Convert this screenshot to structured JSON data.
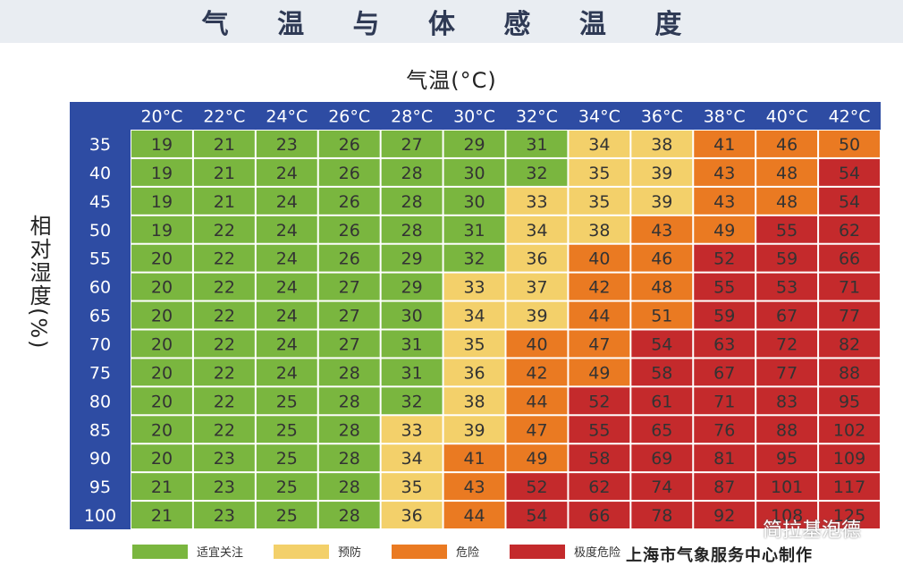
{
  "title": "气 温 与 体 感 温 度",
  "chart_data": {
    "type": "heatmap",
    "xlabel": "气温(°C)",
    "ylabel": "相对湿度(%)",
    "x": [
      "20°C",
      "22°C",
      "24°C",
      "26°C",
      "28°C",
      "30°C",
      "32°C",
      "34°C",
      "36°C",
      "38°C",
      "40°C",
      "42°C"
    ],
    "y": [
      "35",
      "40",
      "45",
      "50",
      "55",
      "60",
      "65",
      "70",
      "75",
      "80",
      "85",
      "90",
      "95",
      "100"
    ],
    "values": [
      [
        19,
        21,
        23,
        26,
        27,
        29,
        31,
        34,
        38,
        41,
        46,
        50
      ],
      [
        19,
        21,
        24,
        26,
        28,
        30,
        32,
        35,
        39,
        43,
        48,
        54
      ],
      [
        19,
        21,
        24,
        26,
        28,
        30,
        33,
        35,
        39,
        43,
        48,
        54
      ],
      [
        19,
        22,
        24,
        26,
        28,
        31,
        34,
        38,
        43,
        49,
        55,
        62
      ],
      [
        20,
        22,
        24,
        26,
        29,
        32,
        36,
        40,
        46,
        52,
        59,
        66
      ],
      [
        20,
        22,
        24,
        27,
        29,
        33,
        37,
        42,
        48,
        55,
        53,
        71
      ],
      [
        20,
        22,
        24,
        27,
        30,
        34,
        39,
        44,
        51,
        59,
        67,
        77
      ],
      [
        20,
        22,
        24,
        27,
        31,
        35,
        40,
        47,
        54,
        63,
        72,
        82
      ],
      [
        20,
        22,
        24,
        28,
        31,
        36,
        42,
        49,
        58,
        67,
        77,
        88
      ],
      [
        20,
        22,
        25,
        28,
        32,
        38,
        44,
        52,
        61,
        71,
        83,
        95
      ],
      [
        20,
        22,
        25,
        28,
        33,
        39,
        47,
        55,
        65,
        76,
        88,
        102
      ],
      [
        20,
        23,
        25,
        28,
        34,
        41,
        49,
        58,
        69,
        81,
        95,
        109
      ],
      [
        21,
        23,
        25,
        28,
        35,
        43,
        52,
        62,
        74,
        87,
        101,
        117
      ],
      [
        21,
        23,
        25,
        28,
        36,
        44,
        54,
        66,
        78,
        92,
        108,
        125
      ]
    ],
    "levels": [
      [
        0,
        0,
        0,
        0,
        0,
        0,
        0,
        1,
        1,
        2,
        2,
        2
      ],
      [
        0,
        0,
        0,
        0,
        0,
        0,
        0,
        1,
        1,
        2,
        2,
        3
      ],
      [
        0,
        0,
        0,
        0,
        0,
        0,
        1,
        1,
        1,
        2,
        2,
        3
      ],
      [
        0,
        0,
        0,
        0,
        0,
        0,
        1,
        1,
        2,
        2,
        3,
        3
      ],
      [
        0,
        0,
        0,
        0,
        0,
        0,
        1,
        2,
        2,
        3,
        3,
        3
      ],
      [
        0,
        0,
        0,
        0,
        0,
        1,
        1,
        2,
        2,
        3,
        3,
        3
      ],
      [
        0,
        0,
        0,
        0,
        0,
        1,
        1,
        2,
        2,
        3,
        3,
        3
      ],
      [
        0,
        0,
        0,
        0,
        0,
        1,
        2,
        2,
        3,
        3,
        3,
        3
      ],
      [
        0,
        0,
        0,
        0,
        0,
        1,
        2,
        2,
        3,
        3,
        3,
        3
      ],
      [
        0,
        0,
        0,
        0,
        0,
        1,
        2,
        3,
        3,
        3,
        3,
        3
      ],
      [
        0,
        0,
        0,
        0,
        1,
        1,
        2,
        3,
        3,
        3,
        3,
        3
      ],
      [
        0,
        0,
        0,
        0,
        1,
        2,
        2,
        3,
        3,
        3,
        3,
        3
      ],
      [
        0,
        0,
        0,
        0,
        1,
        2,
        3,
        3,
        3,
        3,
        3,
        3
      ],
      [
        0,
        0,
        0,
        0,
        1,
        2,
        3,
        3,
        3,
        3,
        3,
        3
      ]
    ],
    "colors": {
      "header": "#2e4ca3",
      "level0": "#7ab63f",
      "level1": "#f3d06a",
      "level2": "#ea7a22",
      "level3": "#c42a2c"
    },
    "legend": [
      {
        "label": "适宜关注",
        "color": "#7ab63f"
      },
      {
        "label": "预防",
        "color": "#f3d06a"
      },
      {
        "label": "危险",
        "color": "#ea7a22"
      },
      {
        "label": "极度危险",
        "color": "#c42a2c"
      }
    ]
  },
  "source": "上海市气象服务中心制作",
  "watermark": "简拉基泡德"
}
